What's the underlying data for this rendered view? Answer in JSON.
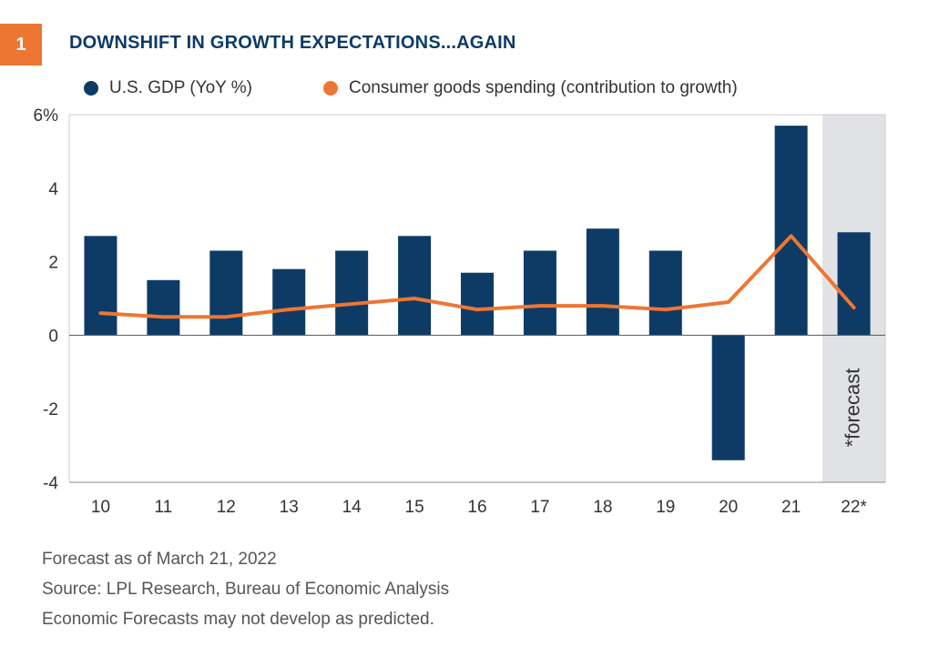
{
  "header": {
    "badge": "1",
    "title": "DOWNSHIFT IN GROWTH EXPECTATIONS...AGAIN"
  },
  "colors": {
    "gdp_bar": "#0d3b66",
    "consumer_line": "#ee7633",
    "badge": "#ee7633",
    "title": "#0d3b66",
    "forecast_shade": "#e1e2e6",
    "grid": "#cfcfcf"
  },
  "chart_data": {
    "type": "bar",
    "categories": [
      "10",
      "11",
      "12",
      "13",
      "14",
      "15",
      "16",
      "17",
      "18",
      "19",
      "20",
      "21",
      "22*"
    ],
    "series": [
      {
        "name": "U.S. GDP (YoY %)",
        "type": "bar",
        "values": [
          2.7,
          1.5,
          2.3,
          1.8,
          2.3,
          2.7,
          1.7,
          2.3,
          2.9,
          2.3,
          -3.4,
          5.7,
          2.8
        ]
      },
      {
        "name": "Consumer goods spending (contribution to growth)",
        "type": "line",
        "values": [
          0.6,
          0.5,
          0.5,
          0.7,
          0.85,
          1.0,
          0.7,
          0.8,
          0.8,
          0.7,
          0.9,
          2.7,
          0.75
        ]
      }
    ],
    "ylim": [
      -4,
      6
    ],
    "yticks": [
      -4,
      -2,
      0,
      2,
      4,
      6
    ],
    "ytick_labels": [
      "-4",
      "-2",
      "0",
      "2",
      "4",
      "6%"
    ],
    "forecast_annotation": "*forecast",
    "legend_position": "top-left",
    "grid": false
  },
  "notes": [
    "Forecast as of March 21, 2022",
    "Source: LPL Research, Bureau of Economic Analysis",
    "Economic Forecasts may not develop as predicted."
  ]
}
